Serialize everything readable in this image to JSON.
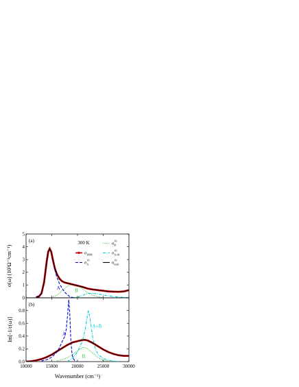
{
  "chart_data": [
    {
      "type": "line",
      "panel_label": "(a)",
      "annotation_temperature": "300 K",
      "ylabel": "σ(ω) (10³Ω⁻¹cm⁻¹)",
      "xlim": [
        10000,
        30000
      ],
      "ylim": [
        0,
        5
      ],
      "yticks": [
        0,
        1,
        2,
        3,
        4,
        5
      ],
      "legend": [
        {
          "main": "σ",
          "sub": "300K",
          "sup": "",
          "color": "#dd0000",
          "style": "markers"
        },
        {
          "main": "σ",
          "sub": "A",
          "sup": "fit",
          "color": "#0000dd",
          "style": "dash"
        },
        {
          "main": "σ",
          "sub": "B",
          "sup": "fit",
          "color": "#22bb22",
          "style": "dot"
        },
        {
          "main": "σ",
          "sub": "A+B",
          "sup": "fit",
          "color": "#00cccc",
          "style": "dashdot"
        },
        {
          "main": "σ",
          "sub": "total",
          "sup": "fit",
          "color": "#000000",
          "style": "solid"
        }
      ],
      "series": [
        {
          "name": "σ300K",
          "color": "#dd0000",
          "x": [
            12000,
            12500,
            13000,
            13500,
            14000,
            14300,
            14600,
            14900,
            15200,
            15600,
            16000,
            16500,
            17000,
            17500,
            18000,
            18500,
            19000,
            19500,
            20000,
            21000,
            22000,
            23000,
            24000,
            25000,
            26000,
            27000,
            28000,
            29000,
            30000
          ],
          "y": [
            0.05,
            0.1,
            0.35,
            1.2,
            2.8,
            3.6,
            3.85,
            3.6,
            3.0,
            2.3,
            1.85,
            1.5,
            1.3,
            1.2,
            1.15,
            1.1,
            1.05,
            1.0,
            0.95,
            0.85,
            0.72,
            0.65,
            0.6,
            0.55,
            0.5,
            0.48,
            0.47,
            0.5,
            0.6
          ]
        },
        {
          "name": "σA fit",
          "color": "#0000dd",
          "x": [
            12000,
            13000,
            13500,
            14000,
            14300,
            14600,
            14900,
            15200,
            15600,
            16000,
            16500,
            17000,
            17500,
            18000,
            18500,
            19000,
            19500
          ],
          "y": [
            0.05,
            0.3,
            1.2,
            2.8,
            3.6,
            3.85,
            3.6,
            3.0,
            2.2,
            1.6,
            1.1,
            0.75,
            0.45,
            0.25,
            0.1,
            0.03,
            0.0
          ]
        },
        {
          "name": "σB fit",
          "color": "#22bb22",
          "x": [
            15000,
            16000,
            17000,
            18000,
            19000,
            20000,
            21000,
            22000,
            23000,
            24000,
            25000
          ],
          "y": [
            0.05,
            0.2,
            0.55,
            0.9,
            1.05,
            0.95,
            0.7,
            0.4,
            0.2,
            0.08,
            0.02
          ]
        },
        {
          "name": "σA+B fit",
          "color": "#00cccc",
          "x": [
            19000,
            20000,
            21000,
            22000,
            23000,
            24000,
            25000,
            26000,
            27000,
            28000,
            29000,
            30000
          ],
          "y": [
            0.0,
            0.05,
            0.2,
            0.35,
            0.35,
            0.3,
            0.22,
            0.15,
            0.1,
            0.06,
            0.03,
            0.02
          ]
        },
        {
          "name": "σtotal fit",
          "color": "#000000",
          "x": [
            12000,
            12500,
            13000,
            13500,
            14000,
            14300,
            14600,
            14900,
            15200,
            15600,
            16000,
            16500,
            17000,
            17500,
            18000,
            18500,
            19000,
            19500,
            20000,
            21000,
            22000,
            23000,
            24000,
            25000,
            26000,
            27000,
            28000,
            29000,
            30000
          ],
          "y": [
            0.05,
            0.1,
            0.35,
            1.2,
            2.8,
            3.6,
            3.85,
            3.6,
            3.0,
            2.3,
            1.85,
            1.5,
            1.3,
            1.2,
            1.15,
            1.1,
            1.05,
            1.0,
            0.95,
            0.85,
            0.72,
            0.65,
            0.6,
            0.55,
            0.5,
            0.48,
            0.47,
            0.5,
            0.6
          ]
        }
      ],
      "labels": [
        {
          "text": "A",
          "x": 16300,
          "y": 0.65,
          "color": "#0000dd"
        },
        {
          "text": "B",
          "x": 19800,
          "y": 0.45,
          "color": "#22bb22"
        }
      ]
    },
    {
      "type": "line",
      "panel_label": "(b)",
      "xlabel": "Wavenumber (cm⁻¹)",
      "ylabel": "Im[-1/ε(ω)]",
      "xlim": [
        10000,
        30000
      ],
      "ylim": [
        0,
        1.0
      ],
      "xticks": [
        10000,
        15000,
        20000,
        25000,
        30000
      ],
      "yticks": [
        "0.0",
        "0.2",
        "0.4",
        "0.6",
        "0.8"
      ],
      "series": [
        {
          "name": "data",
          "color": "#dd0000",
          "x": [
            10000,
            11000,
            12000,
            13000,
            14000,
            15000,
            16000,
            17000,
            18000,
            19000,
            20000,
            21000,
            21500,
            22000,
            23000,
            24000,
            25000,
            26000,
            27000,
            28000,
            29000,
            30000
          ],
          "y": [
            0.0,
            0.005,
            0.02,
            0.04,
            0.07,
            0.11,
            0.16,
            0.21,
            0.26,
            0.3,
            0.32,
            0.34,
            0.34,
            0.33,
            0.29,
            0.24,
            0.19,
            0.15,
            0.12,
            0.1,
            0.09,
            0.09
          ]
        },
        {
          "name": "A",
          "color": "#0000dd",
          "x": [
            13000,
            14000,
            15000,
            16000,
            16500,
            17000,
            17500,
            17800,
            18100,
            18300,
            18500,
            18700,
            18900,
            19100,
            19400,
            19800
          ],
          "y": [
            0.01,
            0.03,
            0.07,
            0.15,
            0.22,
            0.31,
            0.39,
            0.5,
            0.75,
            0.97,
            0.75,
            0.35,
            0.15,
            0.06,
            0.02,
            0.0
          ]
        },
        {
          "name": "B",
          "color": "#22bb22",
          "x": [
            16000,
            17000,
            18000,
            19000,
            20000,
            21000,
            21500,
            22000,
            23000,
            24000,
            25000,
            26000
          ],
          "y": [
            0.01,
            0.03,
            0.06,
            0.11,
            0.17,
            0.22,
            0.22,
            0.2,
            0.13,
            0.06,
            0.02,
            0.01
          ]
        },
        {
          "name": "A+B",
          "color": "#00cccc",
          "x": [
            18000,
            19000,
            20000,
            21000,
            21500,
            21800,
            22100,
            22400,
            22700,
            23000,
            23500,
            24000,
            25000,
            26000,
            27000,
            28000
          ],
          "y": [
            0.0,
            0.05,
            0.15,
            0.33,
            0.5,
            0.66,
            0.8,
            0.7,
            0.52,
            0.36,
            0.2,
            0.11,
            0.05,
            0.02,
            0.01,
            0.0
          ]
        },
        {
          "name": "total",
          "color": "#000000",
          "x": [
            10000,
            11000,
            12000,
            13000,
            14000,
            15000,
            16000,
            17000,
            18000,
            19000,
            20000,
            21000,
            21500,
            22000,
            23000,
            24000,
            25000,
            26000,
            27000,
            28000,
            29000,
            30000
          ],
          "y": [
            0.0,
            0.005,
            0.02,
            0.04,
            0.07,
            0.11,
            0.16,
            0.21,
            0.26,
            0.3,
            0.32,
            0.34,
            0.34,
            0.33,
            0.29,
            0.24,
            0.19,
            0.15,
            0.12,
            0.1,
            0.09,
            0.09
          ]
        }
      ],
      "labels": [
        {
          "text": "A",
          "x": 17400,
          "y": 0.41,
          "color": "#0000dd"
        },
        {
          "text": "B",
          "x": 21200,
          "y": 0.06,
          "color": "#22bb22"
        },
        {
          "text": "A+B",
          "x": 23800,
          "y": 0.53,
          "color": "#00cccc"
        }
      ]
    }
  ]
}
